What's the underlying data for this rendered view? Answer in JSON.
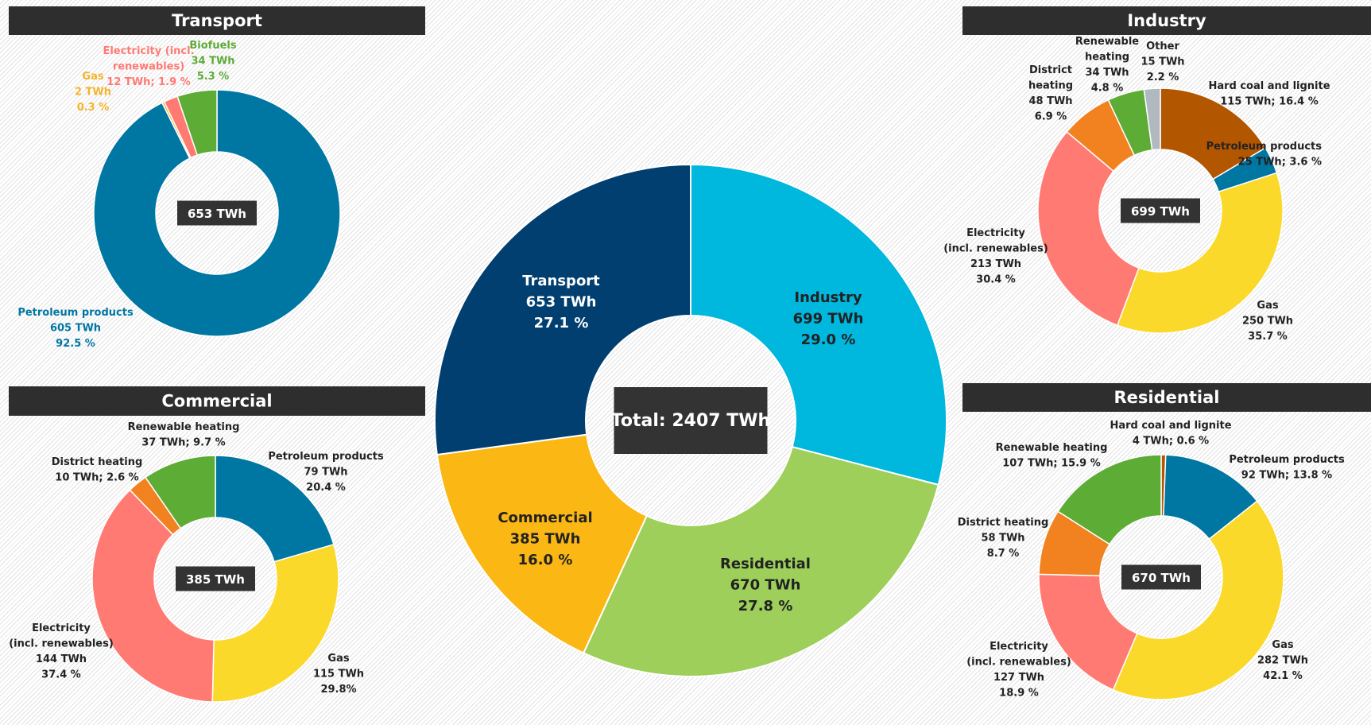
{
  "chart_data": [
    {
      "type": "donut",
      "title": "Transport",
      "center_label": "653 TWh",
      "categories": [
        "Petroleum products",
        "Gas",
        "Electricity (incl.\nrenewables)",
        "Biofuels"
      ],
      "values": [
        605,
        2,
        12,
        34
      ],
      "percentages": [
        92.5,
        0.3,
        1.9,
        5.3
      ],
      "value_labels": [
        "605 TWh\n92.5 %",
        "2 TWh\n0.3 %",
        "12 TWh; 1.9 %",
        "34 TWh\n5.3 %"
      ],
      "colors": [
        "#0077a3",
        "#f5b32a",
        "#ff7a73",
        "#5cac35"
      ]
    },
    {
      "type": "donut",
      "title": "Industry",
      "center_label": "699 TWh",
      "categories": [
        "Hard coal and lignite",
        "Petroleum products",
        "Gas",
        "Electricity\n(incl. renewables)",
        "District\nheating",
        "Renewable\nheating",
        "Other"
      ],
      "values": [
        115,
        25,
        250,
        213,
        48,
        34,
        15
      ],
      "percentages": [
        16.4,
        3.6,
        35.7,
        30.4,
        6.9,
        4.8,
        2.2
      ],
      "value_labels": [
        "115 TWh; 16.4 %",
        "25 TWh; 3.6 %",
        "250 TWh\n35.7 %",
        "213 TWh\n30.4 %",
        "48 TWh\n6.9 %",
        "34 TWh\n4.8 %",
        "15 TWh\n2.2 %"
      ],
      "colors": [
        "#b35600",
        "#0077a3",
        "#fbd92a",
        "#ff7a73",
        "#f28220",
        "#5cac35",
        "#b0b8c0"
      ]
    },
    {
      "type": "donut",
      "title": "Commercial",
      "center_label": "385 TWh",
      "categories": [
        "Petroleum products",
        "Gas",
        "Electricity\n(incl. renewables)",
        "District heating",
        "Renewable heating"
      ],
      "values": [
        79,
        115,
        144,
        10,
        37
      ],
      "percentages": [
        20.4,
        29.8,
        37.4,
        2.6,
        9.7
      ],
      "value_labels": [
        "79 TWh\n20.4 %",
        "115 TWh\n29.8%",
        "144 TWh\n37.4 %",
        "10 TWh; 2.6 %",
        "37 TWh; 9.7 %"
      ],
      "colors": [
        "#0077a3",
        "#fbd92a",
        "#ff7a73",
        "#f28220",
        "#5cac35"
      ]
    },
    {
      "type": "donut",
      "title": "Residential",
      "center_label": "670 TWh",
      "categories": [
        "Hard coal and lignite",
        "Petroleum products",
        "Gas",
        "Electricity\n(incl. renewables)",
        "District heating",
        "Renewable heating"
      ],
      "values": [
        4,
        92,
        282,
        127,
        58,
        107
      ],
      "percentages": [
        0.6,
        13.8,
        42.1,
        18.9,
        8.7,
        15.9
      ],
      "value_labels": [
        "4 TWh; 0.6 %",
        "92 TWh; 13.8 %",
        "282 TWh\n42.1 %",
        "127 TWh\n18.9 %",
        "58 TWh\n8.7 %",
        "107 TWh; 15.9 %"
      ],
      "colors": [
        "#b35600",
        "#0077a3",
        "#fbd92a",
        "#ff7a73",
        "#f28220",
        "#5cac35"
      ]
    },
    {
      "type": "donut",
      "center_label": "Total: 2407 TWh",
      "categories": [
        "Industry",
        "Residential",
        "Commercial",
        "Transport"
      ],
      "values": [
        699,
        670,
        385,
        653
      ],
      "percentages": [
        29.0,
        27.8,
        16.0,
        27.1
      ],
      "value_labels": [
        "699 TWh\n29.0 %",
        "670 TWh\n27.8 %",
        "385 TWh\n16.0 %",
        "653 TWh\n27.1 %"
      ],
      "colors": [
        "#00b7de",
        "#9dcf5a",
        "#fbb713",
        "#003f6f"
      ]
    }
  ]
}
